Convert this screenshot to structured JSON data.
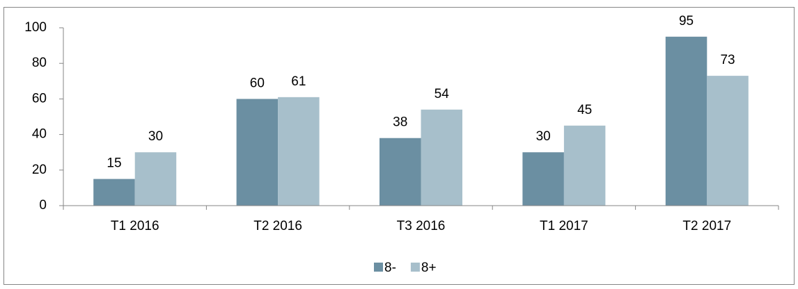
{
  "chart_data": {
    "type": "bar",
    "categories": [
      "T1 2016",
      "T2 2016",
      "T3 2016",
      "T1 2017",
      "T2 2017"
    ],
    "series": [
      {
        "name": "8-",
        "color": "#6b8fa2",
        "values": [
          15,
          60,
          38,
          30,
          95
        ]
      },
      {
        "name": "8+",
        "color": "#a7bfcb",
        "values": [
          30,
          61,
          54,
          45,
          73
        ]
      }
    ],
    "ylim": [
      0,
      100
    ],
    "yticks": [
      0,
      20,
      40,
      60,
      80,
      100
    ],
    "grid": false,
    "legend": "bottom"
  }
}
